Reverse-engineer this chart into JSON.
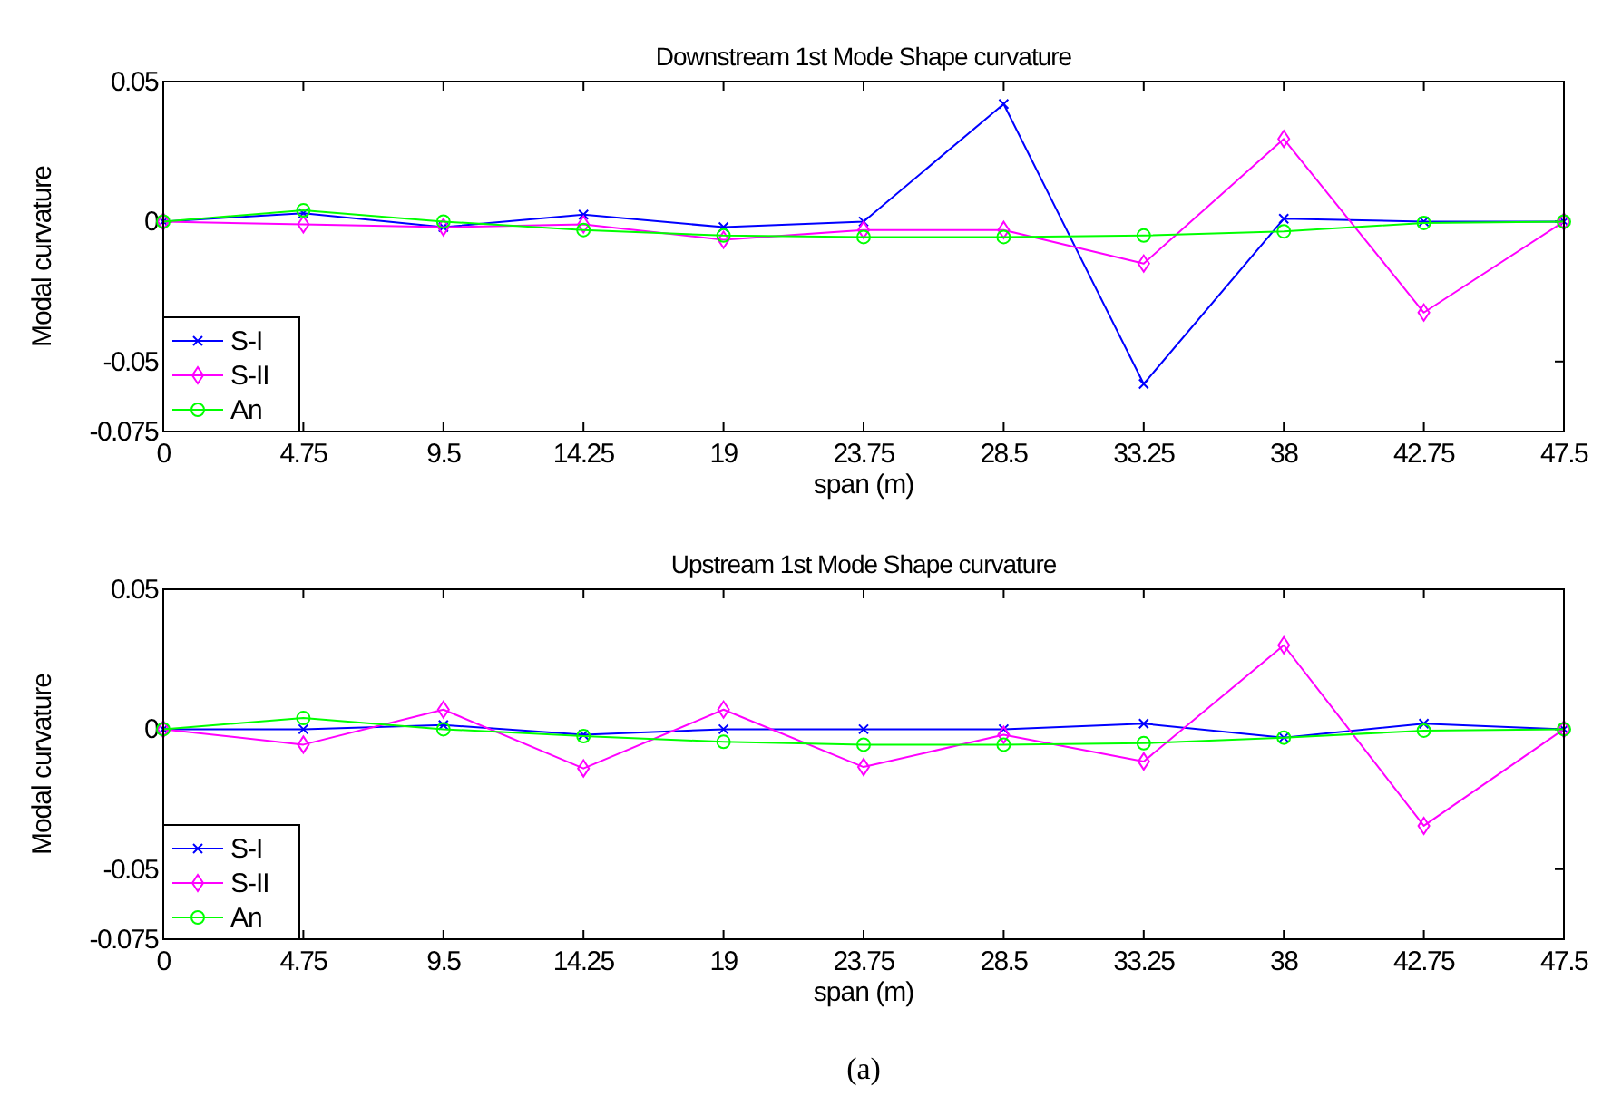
{
  "chart_data": [
    {
      "type": "line",
      "title": "Downstream 1st Mode Shape curvature",
      "xlabel": "span (m)",
      "ylabel": "Modal curvature",
      "x": [
        0,
        4.75,
        9.5,
        14.25,
        19,
        23.75,
        28.5,
        33.25,
        38,
        42.75,
        47.5
      ],
      "xlim": [
        0,
        47.5
      ],
      "xticks": [
        0,
        4.75,
        9.5,
        14.25,
        19,
        23.75,
        28.5,
        33.25,
        38,
        42.75,
        47.5
      ],
      "ylim": [
        -0.075,
        0.05
      ],
      "yticks": [
        -0.075,
        -0.05,
        0,
        0.05
      ],
      "grid": false,
      "legend": "bottom left",
      "series": [
        {
          "name": "S-I",
          "color": "#0000ff",
          "marker": "cross",
          "values": [
            0,
            0.003,
            -0.002,
            0.0025,
            -0.002,
            0,
            0.042,
            -0.058,
            0.001,
            0,
            0
          ]
        },
        {
          "name": "S-II",
          "color": "#ff00ff",
          "marker": "diamond",
          "values": [
            0,
            -0.001,
            -0.002,
            -0.001,
            -0.0065,
            -0.003,
            -0.003,
            -0.015,
            0.0295,
            -0.0325,
            0
          ]
        },
        {
          "name": "An",
          "color": "#00ff00",
          "marker": "circle",
          "values": [
            0,
            0.004,
            0,
            -0.003,
            -0.005,
            -0.0055,
            -0.0055,
            -0.005,
            -0.0035,
            -0.0005,
            0
          ]
        }
      ]
    },
    {
      "type": "line",
      "title": "Upstream 1st Mode Shape curvature",
      "xlabel": "span (m)",
      "ylabel": "Modal curvature",
      "annotations": [
        "(a)"
      ],
      "x": [
        0,
        4.75,
        9.5,
        14.25,
        19,
        23.75,
        28.5,
        33.25,
        38,
        42.75,
        47.5
      ],
      "xlim": [
        0,
        47.5
      ],
      "xticks": [
        0,
        4.75,
        9.5,
        14.25,
        19,
        23.75,
        28.5,
        33.25,
        38,
        42.75,
        47.5
      ],
      "ylim": [
        -0.075,
        0.05
      ],
      "yticks": [
        -0.075,
        -0.05,
        0,
        0.05
      ],
      "grid": false,
      "legend": "bottom left",
      "series": [
        {
          "name": "S-I",
          "color": "#0000ff",
          "marker": "cross",
          "values": [
            0,
            0,
            0.0015,
            -0.002,
            0,
            0,
            0,
            0.002,
            -0.003,
            0.002,
            0
          ]
        },
        {
          "name": "S-II",
          "color": "#ff00ff",
          "marker": "diamond",
          "values": [
            0,
            -0.0055,
            0.007,
            -0.014,
            0.007,
            -0.0135,
            -0.002,
            -0.0115,
            0.03,
            -0.0345,
            0
          ]
        },
        {
          "name": "An",
          "color": "#00ff00",
          "marker": "circle",
          "values": [
            0,
            0.004,
            0,
            -0.0025,
            -0.0045,
            -0.0055,
            -0.0055,
            -0.005,
            -0.003,
            -0.0005,
            0
          ]
        }
      ]
    }
  ]
}
